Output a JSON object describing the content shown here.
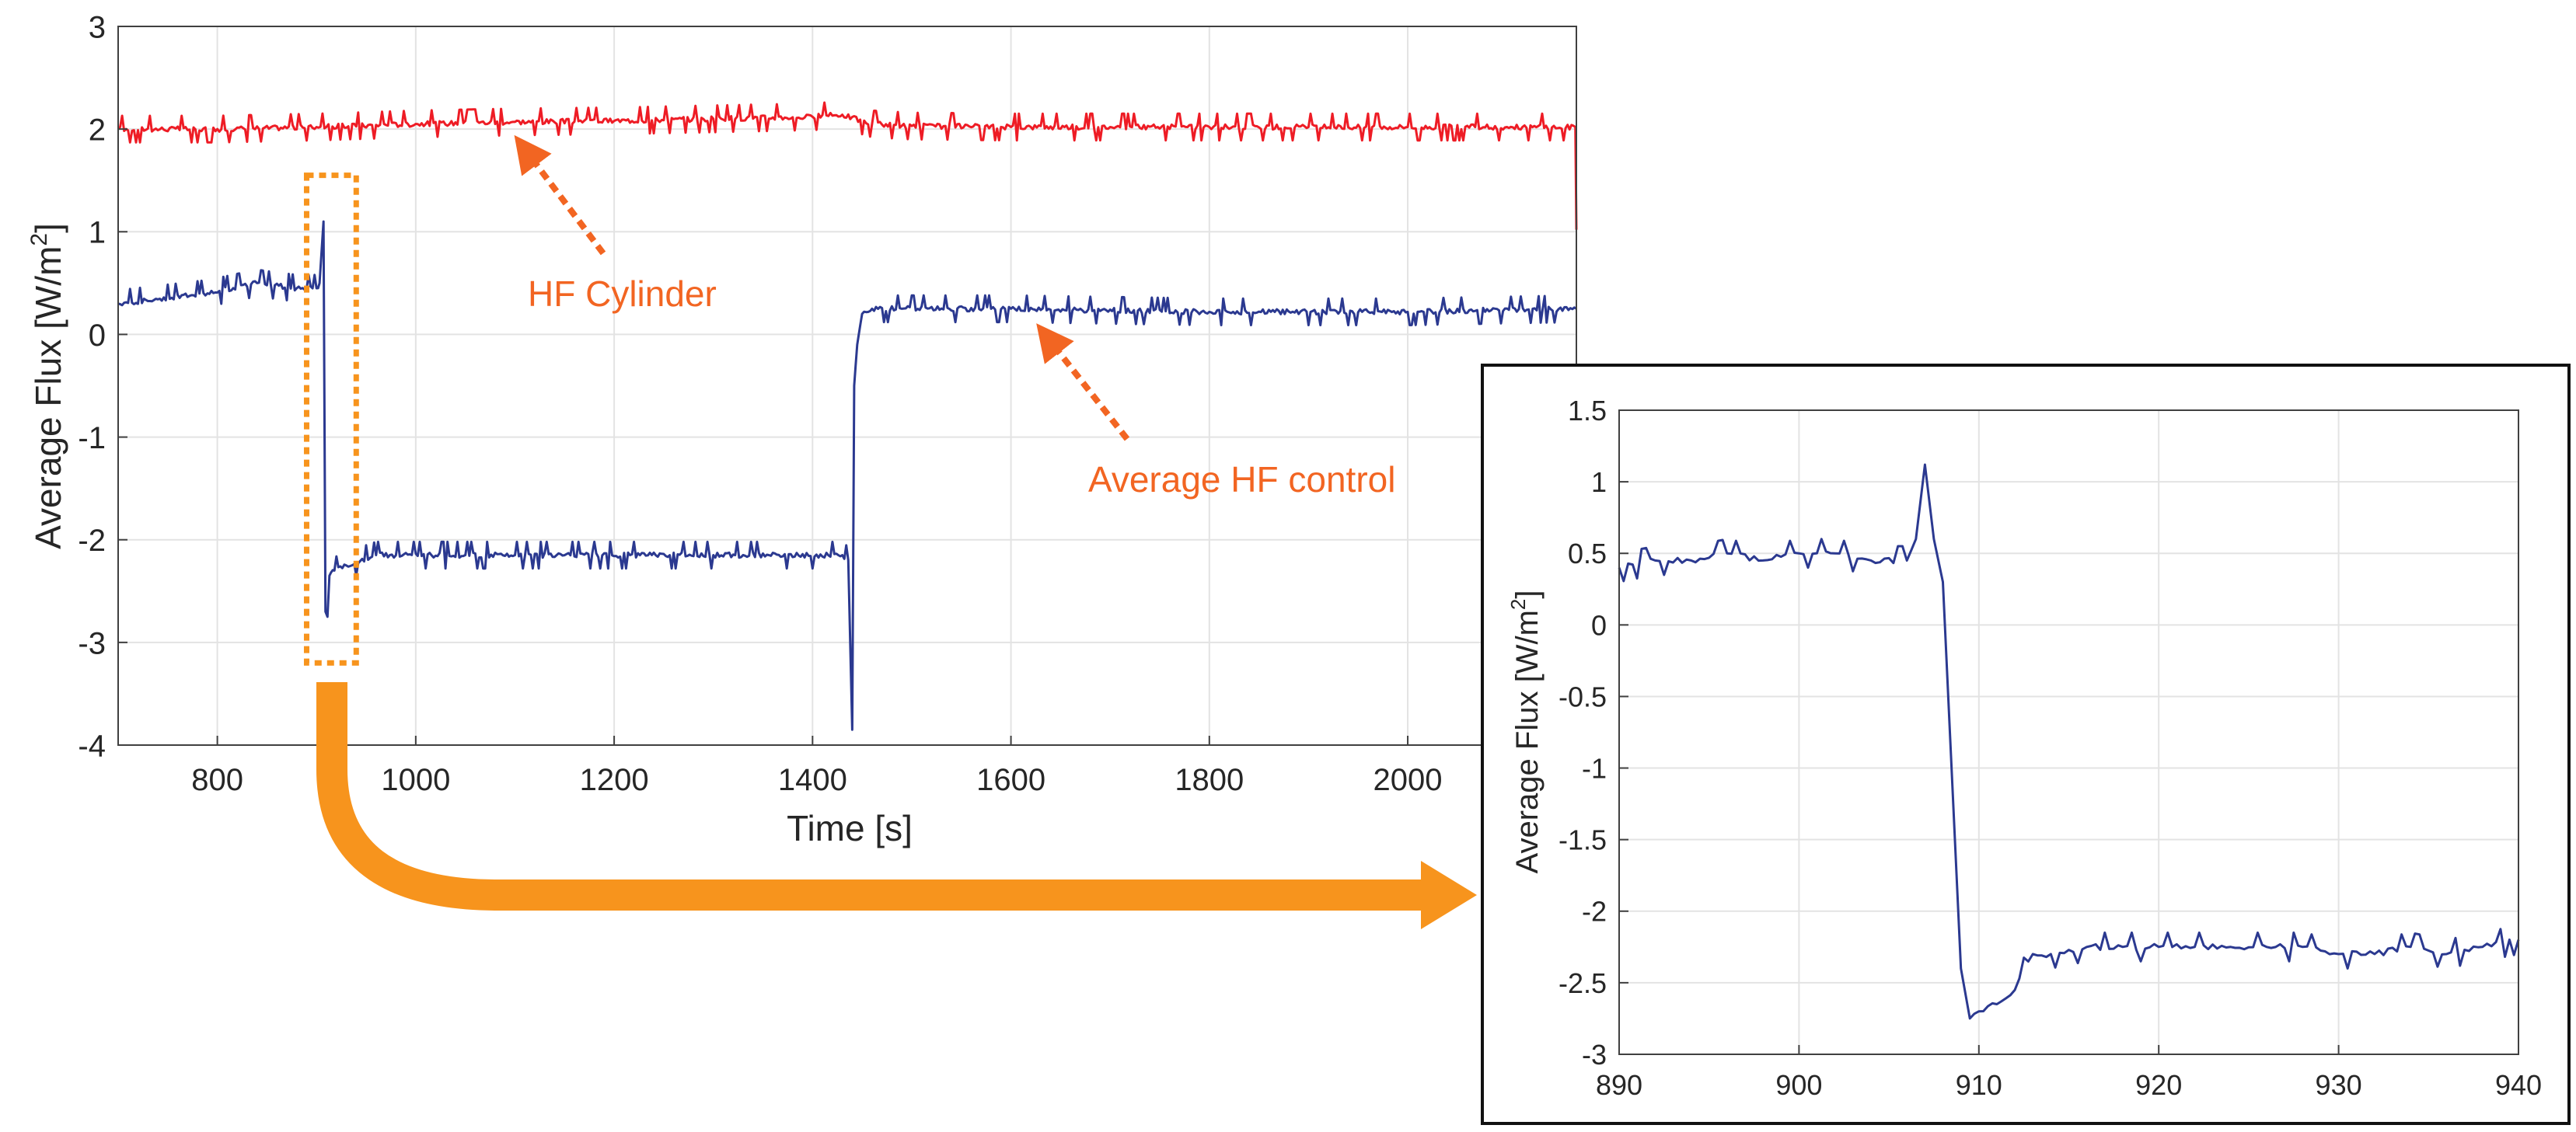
{
  "chart_data": [
    {
      "type": "line",
      "xlabel": "Time [s]",
      "ylabel": "Average Flux [W/m",
      "ylabel_sup": "2",
      "ylabel_close": "]",
      "xlim": [
        700,
        2170
      ],
      "ylim": [
        -4,
        3
      ],
      "xticks": [
        800,
        1000,
        1200,
        1400,
        1600,
        1800,
        2000
      ],
      "yticks": [
        -4,
        -3,
        -2,
        -1,
        0,
        1,
        2,
        3
      ],
      "grid": true,
      "series": [
        {
          "name": "HF Cylinder",
          "color": "#ee1c25",
          "x": [
            700,
            800,
            900,
            1000,
            1100,
            1200,
            1300,
            1400,
            1430,
            1460,
            1500,
            1600,
            1700,
            1800,
            1900,
            2000,
            2100,
            2169,
            2170
          ],
          "y": [
            2.0,
            2.0,
            2.02,
            2.05,
            2.07,
            2.08,
            2.1,
            2.12,
            2.14,
            2.05,
            2.03,
            2.02,
            2.02,
            2.02,
            2.02,
            2.02,
            2.02,
            2.02,
            1.02
          ]
        },
        {
          "name": "Average HF control",
          "color": "#2b3990",
          "x": [
            700,
            790,
            840,
            880,
            900,
            903,
            907,
            909,
            911,
            913,
            918,
            930,
            960,
            1100,
            1300,
            1430,
            1436,
            1440,
            1442,
            1445,
            1450,
            1460,
            1600,
            1800,
            2000,
            2170
          ],
          "y": [
            0.3,
            0.4,
            0.5,
            0.45,
            0.45,
            0.5,
            1.1,
            -2.7,
            -2.75,
            -2.35,
            -2.3,
            -2.25,
            -2.15,
            -2.15,
            -2.15,
            -2.15,
            -2.2,
            -3.85,
            -0.5,
            -0.1,
            0.2,
            0.25,
            0.25,
            0.22,
            0.22,
            0.25
          ]
        }
      ],
      "annotations": [
        {
          "text": "HF Cylinder",
          "color": "#f26522"
        },
        {
          "text": "Average HF control",
          "color": "#f26522"
        }
      ],
      "highlight_region": {
        "x": [
          890,
          940
        ],
        "y": [
          -3.2,
          1.55
        ],
        "color": "#f7941d"
      }
    },
    {
      "type": "line",
      "xlabel": "",
      "ylabel": "Average Flux [W/m",
      "ylabel_sup": "2",
      "ylabel_close": "]",
      "xlim": [
        890,
        940
      ],
      "ylim": [
        -3,
        1.5
      ],
      "xticks": [
        890,
        900,
        910,
        920,
        930,
        940
      ],
      "yticks": [
        -3,
        -2.5,
        -2,
        -1.5,
        -1,
        -0.5,
        0,
        0.5,
        1,
        1.5
      ],
      "grid": true,
      "series": [
        {
          "name": "Average HF control",
          "color": "#2b3990",
          "x": [
            890,
            892,
            894,
            896,
            898,
            900,
            902,
            904,
            906,
            906.5,
            907,
            907.5,
            908,
            909,
            909.5,
            910,
            911,
            912,
            913,
            914,
            916,
            918,
            920,
            922,
            924,
            926,
            928,
            930,
            932,
            934,
            936,
            938,
            940
          ],
          "y": [
            0.4,
            0.45,
            0.45,
            0.5,
            0.45,
            0.5,
            0.5,
            0.45,
            0.45,
            0.6,
            1.12,
            0.6,
            0.3,
            -2.4,
            -2.75,
            -2.7,
            -2.65,
            -2.55,
            -2.3,
            -2.3,
            -2.25,
            -2.25,
            -2.25,
            -2.25,
            -2.25,
            -2.25,
            -2.25,
            -2.3,
            -2.3,
            -2.25,
            -2.3,
            -2.25,
            -2.2
          ]
        }
      ]
    }
  ]
}
